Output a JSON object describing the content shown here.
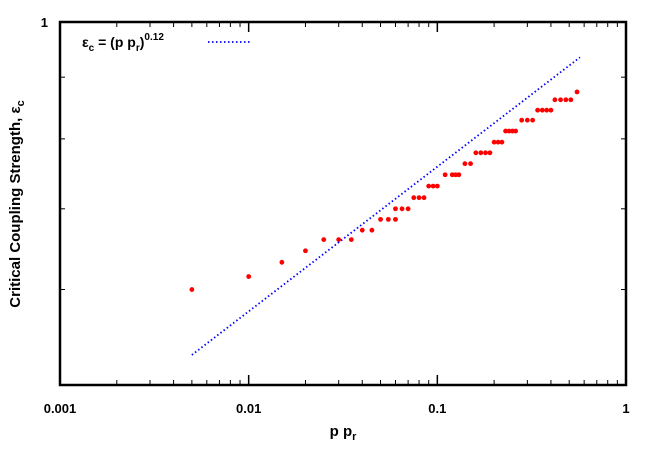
{
  "chart_data": {
    "type": "scatter",
    "xscale": "log",
    "yscale": "log",
    "xlim": [
      0.001,
      1
    ],
    "ylim": [
      0.5,
      1
    ],
    "grid": false,
    "legend_position": "top-left",
    "xlabel": {
      "main": "p p",
      "sub": "r"
    },
    "ylabel": {
      "main": "Critical Coupling Strength, ε",
      "sub": "c"
    },
    "x_ticks": [
      {
        "value": 0.001,
        "label": "0.001"
      },
      {
        "value": 0.01,
        "label": "0.01"
      },
      {
        "value": 0.1,
        "label": "0.1"
      },
      {
        "value": 1,
        "label": "1"
      }
    ],
    "y_ticks": [
      {
        "value": 1,
        "label": "1"
      }
    ],
    "legend": {
      "label_base": "ε",
      "label_base_sub": "c",
      "label_mid": " = (p p",
      "label_mid_sub": "r",
      "label_end": ")",
      "label_sup": "0.12"
    },
    "fit_line": {
      "formula": "y = x^0.12",
      "exponent": 0.12,
      "x_range": [
        0.005,
        0.57
      ],
      "color": "#0000ff",
      "style": "dotted"
    },
    "series": [
      {
        "color": "#ff0000",
        "points": [
          [
            0.005,
            0.6
          ],
          [
            0.01,
            0.615
          ],
          [
            0.015,
            0.632
          ],
          [
            0.02,
            0.646
          ],
          [
            0.025,
            0.66
          ],
          [
            0.03,
            0.66
          ],
          [
            0.035,
            0.66
          ],
          [
            0.04,
            0.672
          ],
          [
            0.045,
            0.672
          ],
          [
            0.05,
            0.686
          ],
          [
            0.055,
            0.686
          ],
          [
            0.06,
            0.686
          ],
          [
            0.06,
            0.7
          ],
          [
            0.065,
            0.7
          ],
          [
            0.07,
            0.7
          ],
          [
            0.075,
            0.715
          ],
          [
            0.08,
            0.715
          ],
          [
            0.085,
            0.715
          ],
          [
            0.09,
            0.731
          ],
          [
            0.095,
            0.731
          ],
          [
            0.1,
            0.731
          ],
          [
            0.11,
            0.747
          ],
          [
            0.12,
            0.747
          ],
          [
            0.125,
            0.747
          ],
          [
            0.13,
            0.747
          ],
          [
            0.14,
            0.763
          ],
          [
            0.15,
            0.763
          ],
          [
            0.16,
            0.779
          ],
          [
            0.17,
            0.779
          ],
          [
            0.18,
            0.779
          ],
          [
            0.19,
            0.779
          ],
          [
            0.2,
            0.795
          ],
          [
            0.21,
            0.795
          ],
          [
            0.22,
            0.795
          ],
          [
            0.23,
            0.812
          ],
          [
            0.24,
            0.812
          ],
          [
            0.25,
            0.812
          ],
          [
            0.26,
            0.812
          ],
          [
            0.28,
            0.829
          ],
          [
            0.3,
            0.829
          ],
          [
            0.32,
            0.829
          ],
          [
            0.34,
            0.845
          ],
          [
            0.36,
            0.845
          ],
          [
            0.38,
            0.845
          ],
          [
            0.4,
            0.845
          ],
          [
            0.42,
            0.862
          ],
          [
            0.45,
            0.862
          ],
          [
            0.48,
            0.862
          ],
          [
            0.51,
            0.862
          ],
          [
            0.55,
            0.875
          ]
        ]
      }
    ]
  }
}
